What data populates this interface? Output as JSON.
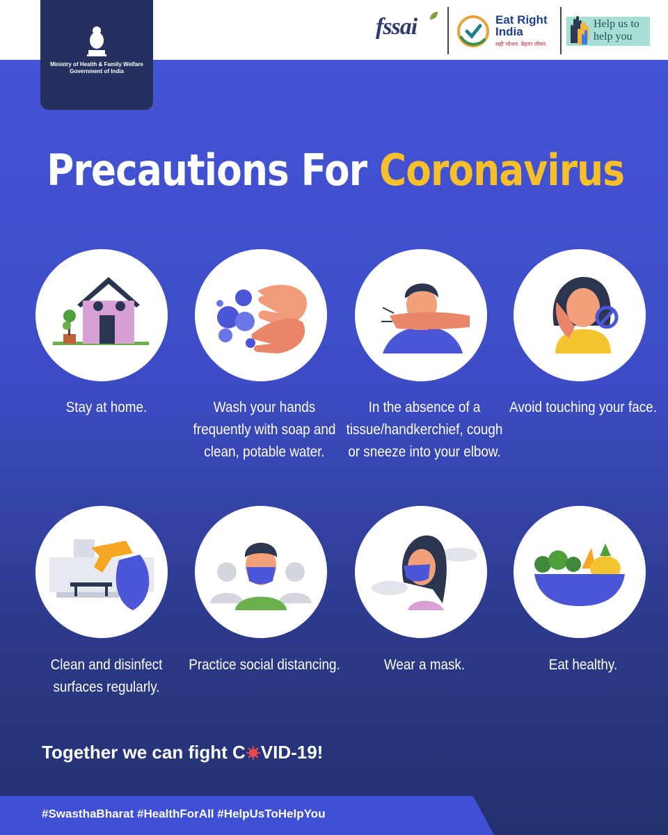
{
  "header": {
    "ministry_line1": "Ministry of Health & Family Welfare",
    "ministry_line2": "Government of India",
    "fssai_logo": "fssai",
    "eat_right_title": "Eat Right India",
    "eat_right_tagline": "सही भोजन. बेहतर जीवन.",
    "help_label": "Help us to help you"
  },
  "title": {
    "part1": "Precautions For",
    "part2": "Coronavirus"
  },
  "colors": {
    "background": "#4655d8",
    "accent_yellow": "#f7c02b",
    "navy": "#25305e"
  },
  "tips": [
    {
      "icon": "house-icon",
      "text": "Stay at home."
    },
    {
      "icon": "handwash-icon",
      "text": "Wash your hands frequently with soap and clean, potable water."
    },
    {
      "icon": "cough-elbow-icon",
      "text": "In the absence of a tissue/handkerchief, cough or sneeze into your elbow."
    },
    {
      "icon": "no-face-touch-icon",
      "text": "Avoid touching your face."
    },
    {
      "icon": "disinfect-spray-icon",
      "text": "Clean and disinfect surfaces regularly."
    },
    {
      "icon": "social-distancing-icon",
      "text": "Practice social distancing."
    },
    {
      "icon": "mask-icon",
      "text": "Wear a mask."
    },
    {
      "icon": "healthy-food-icon",
      "text": "Eat healthy."
    }
  ],
  "tagline": {
    "before": "Together we can fight C",
    "after": "VID-19!"
  },
  "footer": {
    "hashtags": "#SwasthaBharat #HealthForAll #HelpUsToHelpYou"
  }
}
